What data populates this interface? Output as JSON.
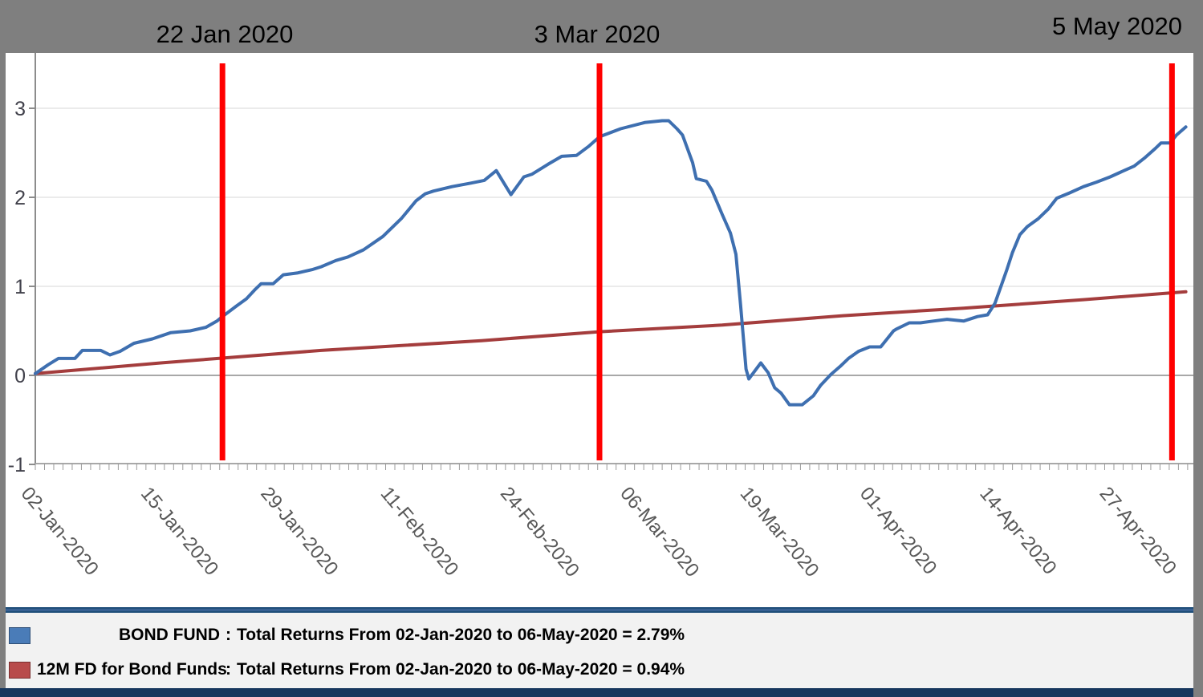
{
  "header": {
    "annotations": [
      {
        "label": "22 Jan 2020"
      },
      {
        "label": "3 Mar 2020"
      },
      {
        "label": "5 May 2020"
      }
    ]
  },
  "legend": {
    "items": [
      {
        "name": "BOND FUND",
        "colon": ":",
        "description": "Total Returns From 02-Jan-2020 to 06-May-2020 = 2.79%",
        "color": "#4a7cb8"
      },
      {
        "name": "12M FD for Bond Funds",
        "colon": ":",
        "description": "Total Returns From 02-Jan-2020 to 06-May-2020 = 0.94%",
        "color": "#b84b4b"
      }
    ]
  },
  "chart_data": {
    "type": "line",
    "title": "",
    "xlabel": "",
    "ylabel": "",
    "x_unit": "days since 02-Jan-2020",
    "ylim": [
      -1,
      3.6
    ],
    "y_ticks": [
      -1,
      0,
      1,
      2,
      3
    ],
    "grid": "horizontal",
    "legend_position": "bottom",
    "x_tick_labels": [
      "02-Jan-2020",
      "15-Jan-2020",
      "29-Jan-2020",
      "11-Feb-2020",
      "24-Feb-2020",
      "06-Mar-2020",
      "19-Mar-2020",
      "01-Apr-2020",
      "14-Apr-2020",
      "27-Apr-2020"
    ],
    "x_tick_days": [
      0,
      13,
      26,
      39,
      52,
      65,
      78,
      91,
      104,
      117
    ],
    "minor_tick_interval_days": 1,
    "x_range_days": [
      0,
      125
    ],
    "marker_color": "#ff0000",
    "markers": [
      {
        "day": 20.3,
        "label": "22 Jan 2020"
      },
      {
        "day": 61.2,
        "label": "3 Mar 2020"
      },
      {
        "day": 123.3,
        "label": "5 May 2020"
      }
    ],
    "series": [
      {
        "name": "BOND FUND",
        "color": "#3e6fb0",
        "total_return_pct": 2.79,
        "points": [
          [
            0,
            0.02
          ],
          [
            1.4,
            0.12
          ],
          [
            2.5,
            0.19
          ],
          [
            4.3,
            0.19
          ],
          [
            5.1,
            0.28
          ],
          [
            7.1,
            0.28
          ],
          [
            8.1,
            0.23
          ],
          [
            9.2,
            0.27
          ],
          [
            10.7,
            0.36
          ],
          [
            12.7,
            0.41
          ],
          [
            14.7,
            0.48
          ],
          [
            16.8,
            0.5
          ],
          [
            18.5,
            0.54
          ],
          [
            19.7,
            0.61
          ],
          [
            20.3,
            0.66
          ],
          [
            21.7,
            0.77
          ],
          [
            22.9,
            0.86
          ],
          [
            23.9,
            0.97
          ],
          [
            24.5,
            1.03
          ],
          [
            25.8,
            1.03
          ],
          [
            26.9,
            1.13
          ],
          [
            28.4,
            1.15
          ],
          [
            30.1,
            1.19
          ],
          [
            31.0,
            1.22
          ],
          [
            32.6,
            1.29
          ],
          [
            33.9,
            1.33
          ],
          [
            35.6,
            1.41
          ],
          [
            37.7,
            1.56
          ],
          [
            39.7,
            1.76
          ],
          [
            41.3,
            1.96
          ],
          [
            42.3,
            2.04
          ],
          [
            43.2,
            2.07
          ],
          [
            45.2,
            2.12
          ],
          [
            47.3,
            2.16
          ],
          [
            48.7,
            2.19
          ],
          [
            50.0,
            2.3
          ],
          [
            51.6,
            2.03
          ],
          [
            53.0,
            2.23
          ],
          [
            53.9,
            2.26
          ],
          [
            55.6,
            2.37
          ],
          [
            57.1,
            2.46
          ],
          [
            58.7,
            2.47
          ],
          [
            60.0,
            2.57
          ],
          [
            61.2,
            2.68
          ],
          [
            63.5,
            2.77
          ],
          [
            66.1,
            2.84
          ],
          [
            68.0,
            2.86
          ],
          [
            68.7,
            2.86
          ],
          [
            69.6,
            2.77
          ],
          [
            70.2,
            2.7
          ],
          [
            71.3,
            2.39
          ],
          [
            71.7,
            2.21
          ],
          [
            72.8,
            2.18
          ],
          [
            73.4,
            2.08
          ],
          [
            74.5,
            1.81
          ],
          [
            75.4,
            1.6
          ],
          [
            76.0,
            1.36
          ],
          [
            76.5,
            0.79
          ],
          [
            77.1,
            0.07
          ],
          [
            77.4,
            -0.04
          ],
          [
            78.7,
            0.14
          ],
          [
            79.5,
            0.03
          ],
          [
            80.2,
            -0.14
          ],
          [
            80.9,
            -0.2
          ],
          [
            81.8,
            -0.33
          ],
          [
            83.2,
            -0.33
          ],
          [
            84.4,
            -0.23
          ],
          [
            85.2,
            -0.11
          ],
          [
            86.3,
            0.01
          ],
          [
            87.3,
            0.1
          ],
          [
            88.2,
            0.19
          ],
          [
            89.3,
            0.27
          ],
          [
            90.5,
            0.32
          ],
          [
            91.7,
            0.32
          ],
          [
            92.4,
            0.41
          ],
          [
            93.1,
            0.5
          ],
          [
            93.4,
            0.52
          ],
          [
            94.8,
            0.59
          ],
          [
            96.0,
            0.59
          ],
          [
            97.4,
            0.61
          ],
          [
            98.9,
            0.63
          ],
          [
            100.7,
            0.61
          ],
          [
            102.2,
            0.66
          ],
          [
            103.3,
            0.68
          ],
          [
            104.1,
            0.81
          ],
          [
            105.4,
            1.19
          ],
          [
            106.0,
            1.38
          ],
          [
            106.8,
            1.58
          ],
          [
            107.6,
            1.67
          ],
          [
            108.8,
            1.76
          ],
          [
            109.9,
            1.87
          ],
          [
            110.8,
            1.99
          ],
          [
            112.2,
            2.05
          ],
          [
            113.7,
            2.12
          ],
          [
            115.1,
            2.17
          ],
          [
            116.6,
            2.23
          ],
          [
            118.1,
            2.3
          ],
          [
            119.2,
            2.35
          ],
          [
            120.3,
            2.44
          ],
          [
            121.5,
            2.55
          ],
          [
            122.1,
            2.61
          ],
          [
            123.1,
            2.61
          ],
          [
            123.8,
            2.7
          ],
          [
            124.8,
            2.79
          ]
        ]
      },
      {
        "name": "12M FD for Bond Funds",
        "color": "#a43d3d",
        "total_return_pct": 0.94,
        "points": [
          [
            0,
            0.02
          ],
          [
            13.6,
            0.14
          ],
          [
            31,
            0.28
          ],
          [
            48.4,
            0.39
          ],
          [
            61.2,
            0.49
          ],
          [
            74.5,
            0.565
          ],
          [
            87.6,
            0.67
          ],
          [
            100.7,
            0.755
          ],
          [
            113.7,
            0.85
          ],
          [
            124.8,
            0.94
          ]
        ]
      }
    ],
    "axis_colors": {
      "gridline": "#ebebeb",
      "zero_line": "#a8a8a8",
      "axis": "#8c8c8c",
      "tick_label": "#595959",
      "y_tick_label": "#41414b"
    }
  }
}
